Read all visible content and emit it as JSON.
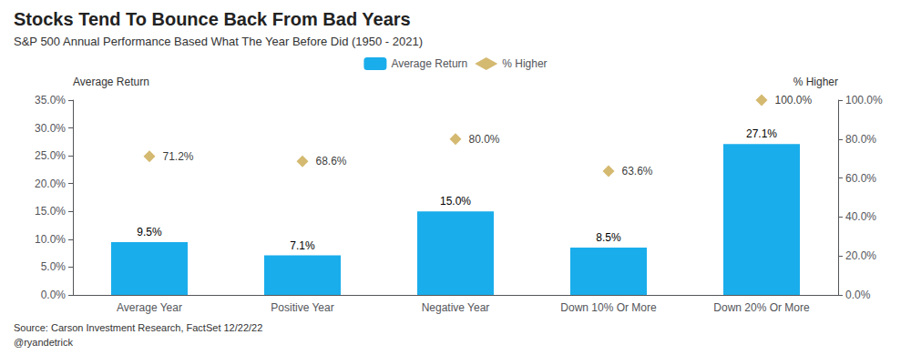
{
  "chart_data": {
    "type": "bar",
    "title": "Stocks Tend To Bounce Back From Bad Years",
    "subtitle": "S&P 500 Annual Performance Based What The Year Before Did (1950 - 2021)",
    "categories": [
      "Average Year",
      "Positive Year",
      "Negative Year",
      "Down 10% Or More",
      "Down 20% Or More"
    ],
    "series": [
      {
        "name": "Average Return",
        "type": "bar",
        "color": "#1AADEB",
        "values": [
          9.5,
          7.1,
          15.0,
          8.5,
          27.1
        ],
        "value_labels": [
          "9.5%",
          "7.1%",
          "15.0%",
          "8.5%",
          "27.1%"
        ]
      },
      {
        "name": "% Higher",
        "type": "scatter",
        "marker": "diamond",
        "color": "#C9A84C",
        "axis": "y2",
        "values": [
          71.2,
          68.6,
          80.0,
          63.6,
          100.0
        ],
        "value_labels": [
          "71.2%",
          "68.6%",
          "80.0%",
          "63.6%",
          "100.0%"
        ]
      }
    ],
    "ylabel": "Average Return",
    "y2label": "% Higher",
    "ylim": [
      0,
      35
    ],
    "yticks": [
      {
        "value": 0,
        "label": "0.0%"
      },
      {
        "value": 5,
        "label": "5.0%"
      },
      {
        "value": 10,
        "label": "10.0%"
      },
      {
        "value": 15,
        "label": "15.0%"
      },
      {
        "value": 20,
        "label": "20.0%"
      },
      {
        "value": 25,
        "label": "25.0%"
      },
      {
        "value": 30,
        "label": "30.0%"
      },
      {
        "value": 35,
        "label": "35.0%"
      }
    ],
    "y2lim": [
      0,
      100
    ],
    "y2ticks": [
      {
        "value": 0,
        "label": "0.0%"
      },
      {
        "value": 20,
        "label": "20.0%"
      },
      {
        "value": 40,
        "label": "40.0%"
      },
      {
        "value": 60,
        "label": "60.0%"
      },
      {
        "value": 80,
        "label": "80.0%"
      },
      {
        "value": 100,
        "label": "100.0%"
      }
    ],
    "grid": false,
    "legend": "top",
    "data_labels": true,
    "annotations": [
      "Source: Carson Investment Research, FactSet 12/22/22",
      "@ryandetrick"
    ]
  }
}
